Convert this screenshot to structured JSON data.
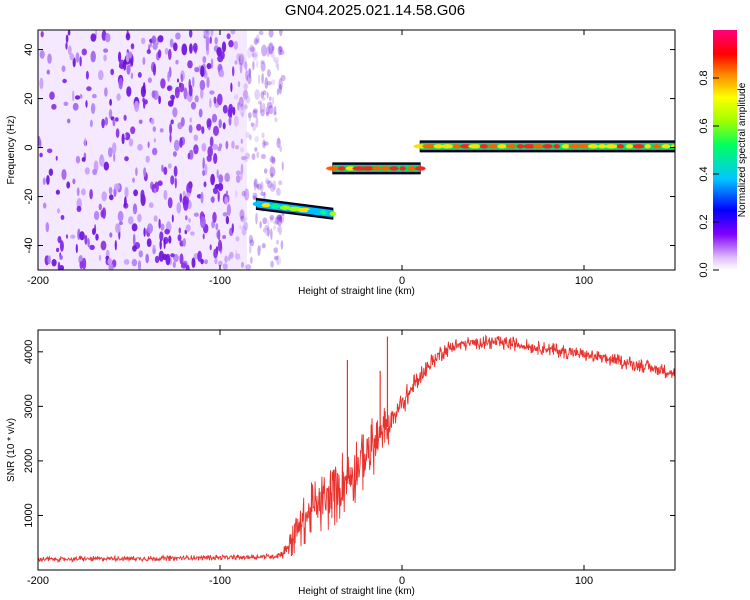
{
  "title": "GN04.2025.021.14.58.G06",
  "colors": {
    "noise": "#8a2be2",
    "snr_line": "#e8322e",
    "axis": "#000000"
  },
  "colorbar": {
    "label": "Normalized spectral amplitude",
    "ticks": [
      "0.0",
      "0.2",
      "0.4",
      "0.6",
      "0.8"
    ],
    "tick_values": [
      0.0,
      0.2,
      0.4,
      0.6,
      0.8
    ],
    "range": [
      0,
      1
    ],
    "colormap": [
      "#e0c0ff",
      "#8000ff",
      "#0000ff",
      "#00c0ff",
      "#00ff60",
      "#a0ff00",
      "#ffff00",
      "#ff8000",
      "#ff0000",
      "#ff0080"
    ]
  },
  "chart_data": [
    {
      "type": "heatmap",
      "title": "",
      "xlabel": "Height of straight line (km)",
      "ylabel": "Frequency (Hz)",
      "xlim": [
        -200,
        150
      ],
      "ylim": [
        -50,
        48
      ],
      "xticks": [
        -200,
        -100,
        0,
        100
      ],
      "xtick_labels": [
        "-200",
        "-100",
        "0",
        "100"
      ],
      "yticks": [
        -40,
        -20,
        0,
        20,
        40
      ],
      "ytick_labels": [
        "-40",
        "-20",
        "0",
        "20",
        "40"
      ],
      "noise_region": {
        "x": [
          -200,
          -65
        ],
        "y": [
          -50,
          48
        ],
        "amplitude": [
          0.05,
          0.25
        ]
      },
      "segments": [
        {
          "x": [
            -80,
            -38
          ],
          "y": [
            -23,
            -27
          ],
          "amplitude": 0.55
        },
        {
          "x": [
            -38,
            10
          ],
          "y": [
            -8.5,
            -8.5
          ],
          "amplitude": 0.85
        },
        {
          "x": [
            10,
            150
          ],
          "y": [
            0.5,
            0.5
          ],
          "amplitude": 0.9
        }
      ],
      "grid": false
    },
    {
      "type": "line",
      "title": "",
      "xlabel": "Height of straight line (km)",
      "ylabel": "SNR (10 * v/v)",
      "xlim": [
        -200,
        150
      ],
      "ylim": [
        0,
        4400
      ],
      "xticks": [
        -200,
        -100,
        0,
        100
      ],
      "xtick_labels": [
        "-200",
        "-100",
        "0",
        "100"
      ],
      "yticks": [
        1000,
        2000,
        3000,
        4000
      ],
      "ytick_labels": [
        "1000",
        "2000",
        "3000",
        "4000"
      ],
      "series": [
        {
          "x": [
            -200,
            -180,
            -160,
            -140,
            -120,
            -100,
            -90,
            -80,
            -70,
            -65,
            -60,
            -55,
            -50,
            -45,
            -40,
            -35,
            -30,
            -25,
            -20,
            -15,
            -10,
            -5,
            0,
            5,
            10,
            15,
            20,
            25,
            30,
            40,
            50,
            60,
            70,
            80,
            90,
            100,
            110,
            120,
            130,
            140,
            150
          ],
          "values": [
            200,
            200,
            210,
            210,
            220,
            230,
            230,
            240,
            250,
            320,
            600,
            900,
            1100,
            1200,
            1300,
            1500,
            1700,
            1900,
            2100,
            2300,
            2500,
            2800,
            3050,
            3300,
            3550,
            3750,
            3950,
            4050,
            4120,
            4170,
            4170,
            4150,
            4100,
            4050,
            4000,
            3950,
            3880,
            3820,
            3760,
            3680,
            3600
          ],
          "noise": [
            50,
            50,
            50,
            50,
            50,
            50,
            50,
            50,
            50,
            120,
            400,
            500,
            500,
            550,
            600,
            650,
            650,
            650,
            600,
            550,
            500,
            300,
            250,
            220,
            200,
            180,
            160,
            150,
            140,
            130,
            130,
            130,
            130,
            130,
            130,
            130,
            130,
            130,
            130,
            130,
            130
          ]
        }
      ],
      "spikes": [
        {
          "x": -30,
          "value": 3850
        },
        {
          "x": -8,
          "value": 4280
        },
        {
          "x": -12,
          "value": 3650
        }
      ],
      "grid": false
    }
  ]
}
